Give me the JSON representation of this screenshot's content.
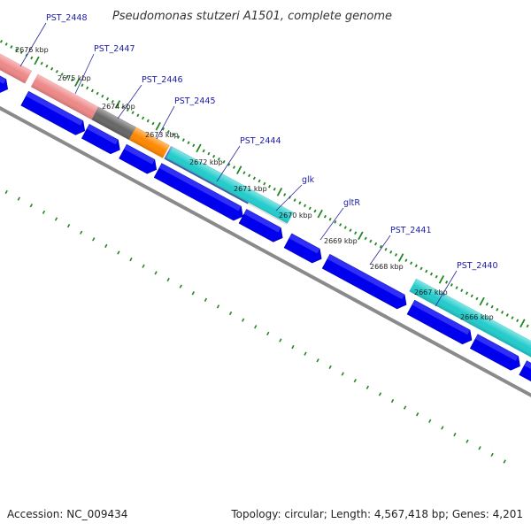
{
  "title": "Pseudomonas stutzeri A1501, complete genome",
  "footer": {
    "accession": "Accession: NC_009434",
    "summary": "Topology: circular; Length: 4,567,418 bp; Genes: 4,201"
  },
  "colors": {
    "cds_forward": "#0000ee",
    "backbone": "#8c8c8c",
    "tick": "#228822",
    "label_line": "#2a2aa0"
  },
  "kbp_labels": [
    "2676 kbp",
    "2675 kbp",
    "2674 kbp",
    "2673 kbp",
    "2672 kbp",
    "2671 kbp",
    "2670 kbp",
    "2669 kbp",
    "2668 kbp",
    "2667 kbp",
    "2666 kbp"
  ],
  "gene_labels": [
    "PST_2448",
    "PST_2447",
    "PST_2446",
    "PST_2445",
    "PST_2444",
    "glk",
    "gltR",
    "PST_2441",
    "PST_2440"
  ],
  "feature_colors": [
    "#ee8888",
    "#ee8888",
    "#666666",
    "#ff8800",
    "#5577cc",
    "#22cccc",
    "#22cccc",
    "#22cccc"
  ]
}
